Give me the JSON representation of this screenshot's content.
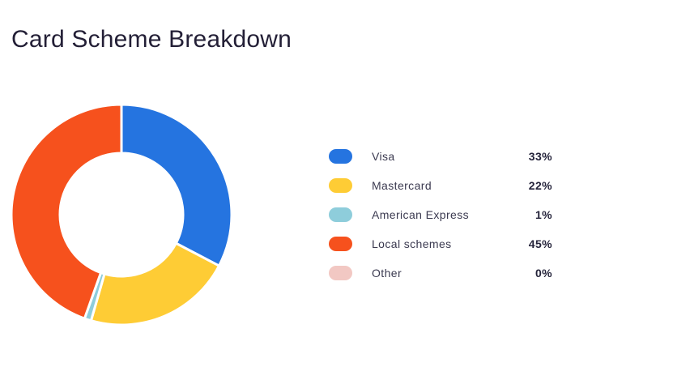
{
  "title": "Card Scheme Breakdown",
  "chart_data": {
    "type": "pie",
    "variant": "donut",
    "title": "Card Scheme Breakdown",
    "legend_position": "right",
    "series": [
      {
        "name": "Visa",
        "value": 33,
        "label": "33%",
        "color": "#2574e0"
      },
      {
        "name": "Mastercard",
        "value": 22,
        "label": "22%",
        "color": "#fecc35"
      },
      {
        "name": "American Express",
        "value": 1,
        "label": "1%",
        "color": "#8ecddb"
      },
      {
        "name": "Local schemes",
        "value": 45,
        "label": "45%",
        "color": "#f6511d"
      },
      {
        "name": "Other",
        "value": 0,
        "label": "0%",
        "color": "#f2c8c3"
      }
    ]
  }
}
